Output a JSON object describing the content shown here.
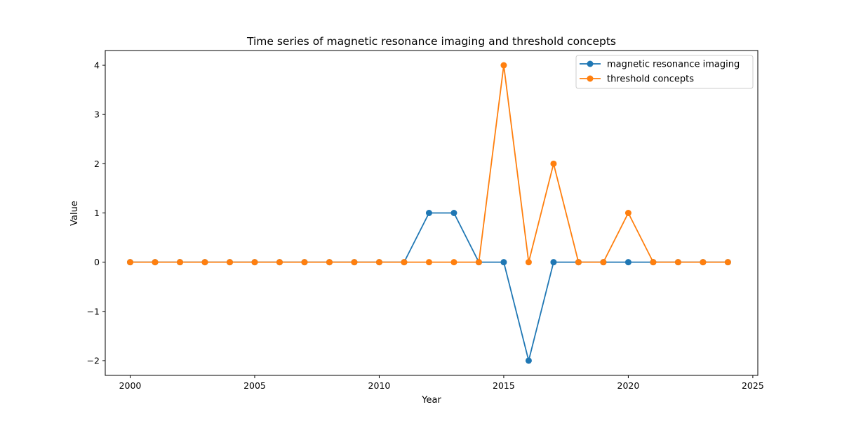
{
  "chart_data": {
    "type": "line",
    "title": "Time series of magnetic resonance imaging and threshold concepts",
    "xlabel": "Year",
    "ylabel": "Value",
    "xlim": [
      1999.0,
      2025.2
    ],
    "ylim": [
      -2.3,
      4.3
    ],
    "x_ticks": [
      2000,
      2005,
      2010,
      2015,
      2020,
      2025
    ],
    "x_tick_labels": [
      "2000",
      "2005",
      "2010",
      "2015",
      "2020",
      "2025"
    ],
    "y_ticks": [
      -2,
      -1,
      0,
      1,
      2,
      3,
      4
    ],
    "y_tick_labels": [
      "−2",
      "−1",
      "0",
      "1",
      "2",
      "3",
      "4"
    ],
    "grid": false,
    "legend_position": "top-right",
    "x": [
      2000,
      2001,
      2002,
      2003,
      2004,
      2005,
      2006,
      2007,
      2008,
      2009,
      2010,
      2011,
      2012,
      2013,
      2014,
      2015,
      2016,
      2017,
      2018,
      2019,
      2020,
      2021,
      2022,
      2023,
      2024
    ],
    "series": [
      {
        "name": "magnetic resonance imaging",
        "color": "#1f77b4",
        "values": [
          0,
          0,
          0,
          0,
          0,
          0,
          0,
          0,
          0,
          0,
          0,
          0,
          1,
          1,
          0,
          0,
          -2,
          0,
          0,
          0,
          0,
          0,
          0,
          0,
          0
        ]
      },
      {
        "name": "threshold concepts",
        "color": "#ff7f0e",
        "values": [
          0,
          0,
          0,
          0,
          0,
          0,
          0,
          0,
          0,
          0,
          0,
          0,
          0,
          0,
          0,
          4,
          0,
          2,
          0,
          0,
          1,
          0,
          0,
          0,
          0
        ]
      }
    ]
  }
}
